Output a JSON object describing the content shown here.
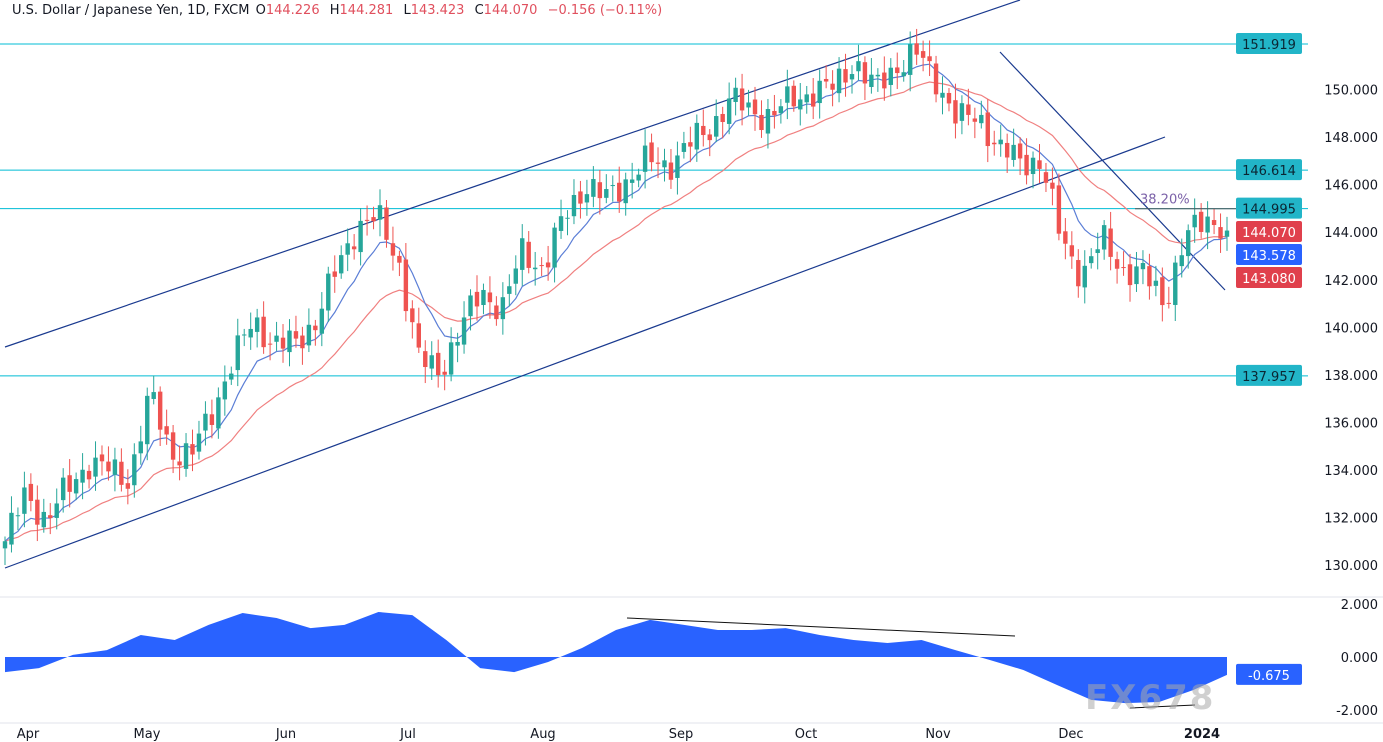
{
  "header": {
    "symbol": "U.S. Dollar / Japanese Yen, 1D, FXCM",
    "o_label": "O",
    "open": "144.226",
    "h_label": "H",
    "high": "144.281",
    "l_label": "L",
    "low": "143.423",
    "c_label": "C",
    "close": "144.070",
    "change": "−0.156 (−0.11%)"
  },
  "watermark": "FX678",
  "colors": {
    "up": "#26a69a",
    "down": "#ef5350",
    "level": "#00bcd4",
    "trend": "#1a3a8f",
    "ma_fast": "#5b7ed6",
    "ma_slow": "#f08080",
    "osc": "#2962ff",
    "badge_level": "#22b5c8",
    "badge_red": "#e0404c",
    "badge_blue": "#2962ff"
  },
  "chart_data": {
    "type": "candlestick",
    "price_axis": {
      "ticks": [
        "130.000",
        "132.000",
        "134.000",
        "136.000",
        "138.000",
        "140.000",
        "142.000",
        "144.000",
        "146.000",
        "148.000",
        "150.000"
      ],
      "range": [
        129.2,
        153.8
      ]
    },
    "x_ticks": [
      "Apr",
      "May",
      "Jun",
      "Jul",
      "Aug",
      "Sep",
      "Oct",
      "Nov",
      "Dec",
      "2024"
    ],
    "closes": [
      131.0,
      133.0,
      131.9,
      133.2,
      134.3,
      134.0,
      133.6,
      137.2,
      134.8,
      134.6,
      136.5,
      138.6,
      140.3,
      139.3,
      139.3,
      140.3,
      142.4,
      144.3,
      144.6,
      142.8,
      138.6,
      138.2,
      139.9,
      141.6,
      140.7,
      143.3,
      142.4,
      144.7,
      146.0,
      145.4,
      146.2,
      147.0,
      146.8,
      147.7,
      148.3,
      149.6,
      149.1,
      148.9,
      149.6,
      149.9,
      150.1,
      151.2,
      150.0,
      151.0,
      151.5,
      150.4,
      148.7,
      148.9,
      147.5,
      147.0,
      147.0,
      143.7,
      142.2,
      143.7,
      142.4,
      142.2,
      141.1,
      143.7,
      144.7,
      144.07
    ],
    "levels": [
      {
        "price": 151.919,
        "label": "151.919"
      },
      {
        "price": 146.614,
        "label": "146.614"
      },
      {
        "price": 144.995,
        "label": "144.995"
      },
      {
        "price": 137.957,
        "label": "137.957"
      }
    ],
    "fib": {
      "label": "38.20%",
      "price": 144.99
    },
    "badges": [
      {
        "label": "144.070",
        "price": 144.07,
        "color": "red"
      },
      {
        "label": "143.578",
        "price": 143.578,
        "color": "blue"
      },
      {
        "label": "143.080",
        "price": 143.08,
        "color": "red"
      }
    ],
    "oscillator": {
      "type": "area",
      "ticks": [
        "2.000",
        "0.000",
        "-2.000"
      ],
      "range": [
        -2.4,
        2.2
      ],
      "values": [
        -0.57,
        -0.42,
        0.08,
        0.26,
        0.83,
        0.64,
        1.21,
        1.66,
        1.47,
        1.09,
        1.21,
        1.7,
        1.58,
        0.64,
        -0.42,
        -0.57,
        -0.19,
        0.34,
        1.02,
        1.4,
        1.21,
        1.02,
        1.02,
        1.09,
        0.83,
        0.64,
        0.53,
        0.64,
        0.26,
        -0.11,
        -0.49,
        -1.06,
        -1.62,
        -1.74,
        -1.7,
        -1.25,
        -0.675
      ],
      "last_label": "-0.675"
    }
  }
}
